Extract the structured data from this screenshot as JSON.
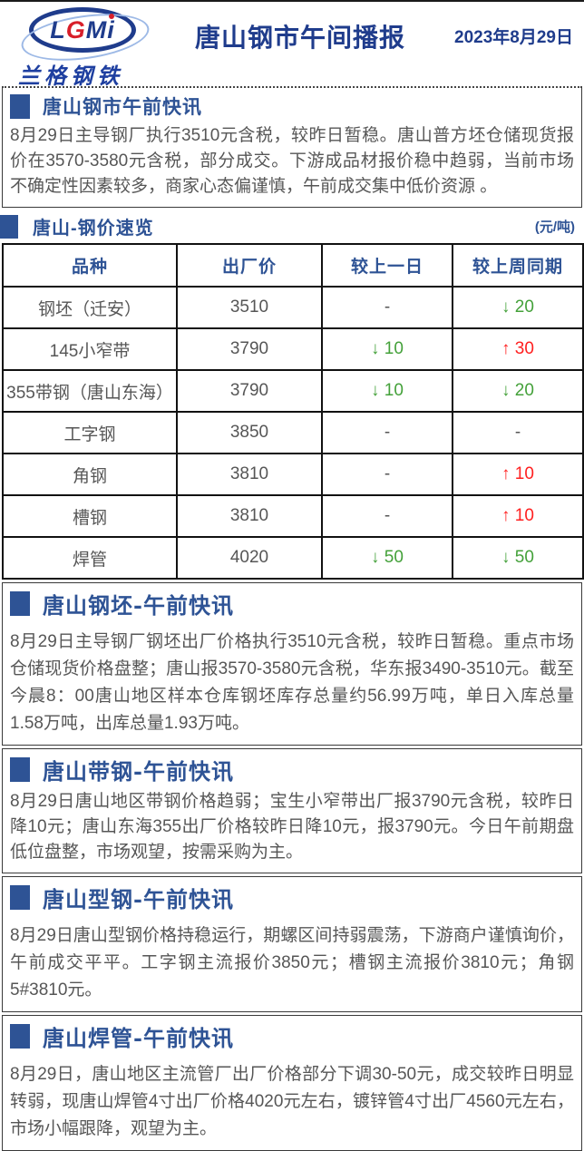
{
  "header": {
    "logo": {
      "letters": [
        "L",
        "G",
        "M",
        "i"
      ],
      "subtext": "兰格钢铁"
    },
    "title": "唐山钢市午间播报",
    "date": "2023年8月29日"
  },
  "morning_brief": {
    "heading": "唐山钢市午前快讯",
    "body": "8月29日主导钢厂执行3510元含税，较昨日暂稳。唐山普方坯仓储现货报价在3570-3580元含税，部分成交。下游成品材报价稳中趋弱，当前市场不确定性因素较多，商家心态偏谨慎，午前成交集中低价资源 。"
  },
  "price_overview": {
    "heading": "唐山-钢价速览",
    "unit": "(元/吨)"
  },
  "price_table": {
    "headers": [
      "品种",
      "出厂价",
      "较上一日",
      "较上周同期"
    ],
    "rows": [
      {
        "product": "钢坯（迁安）",
        "price": "3510",
        "dod": {
          "text": "-",
          "dir": "flat"
        },
        "wow": {
          "text": "↓ 20",
          "dir": "down"
        }
      },
      {
        "product": "145小窄带",
        "price": "3790",
        "dod": {
          "text": "↓ 10",
          "dir": "down"
        },
        "wow": {
          "text": "↑ 30",
          "dir": "up"
        }
      },
      {
        "product": "355带钢（唐山东海）",
        "price": "3790",
        "dod": {
          "text": "↓ 10",
          "dir": "down"
        },
        "wow": {
          "text": "↓ 20",
          "dir": "down"
        }
      },
      {
        "product": "工字钢",
        "price": "3850",
        "dod": {
          "text": "-",
          "dir": "flat"
        },
        "wow": {
          "text": "-",
          "dir": "flat"
        }
      },
      {
        "product": "角钢",
        "price": "3810",
        "dod": {
          "text": "-",
          "dir": "flat"
        },
        "wow": {
          "text": "↑ 10",
          "dir": "up"
        }
      },
      {
        "product": "槽钢",
        "price": "3810",
        "dod": {
          "text": "-",
          "dir": "flat"
        },
        "wow": {
          "text": "↑ 10",
          "dir": "up"
        }
      },
      {
        "product": "焊管",
        "price": "4020",
        "dod": {
          "text": "↓ 50",
          "dir": "down"
        },
        "wow": {
          "text": "↓ 50",
          "dir": "down"
        }
      }
    ]
  },
  "billet_section": {
    "heading": "唐山钢坯-午前快讯",
    "body": "8月29日主导钢厂钢坯出厂价格执行3510元含税，较昨日暂稳。重点市场仓储现货价格盘整；唐山报3570-3580元含税，华东报3490-3510元。截至今晨8：00唐山地区样本仓库钢坯库存总量约56.99万吨，单日入库总量1.58万吨，出库总量1.93万吨。"
  },
  "strip_section": {
    "heading": "唐山带钢-午前快讯",
    "body": "8月29日唐山地区带钢价格趋弱；宝生小窄带出厂报3790元含税，较昨日降10元；唐山东海355出厂价格较昨日降10元，报3790元。今日午前期盘低位盘整，市场观望，按需采购为主。"
  },
  "section_steel_section": {
    "heading": "唐山型钢-午前快讯",
    "body": "8月29日唐山型钢价格持稳运行，期螺区间持弱震荡，下游商户谨慎询价，午前成交平平。工字钢主流报价3850元；槽钢主流报价3810元；角钢5#3810元。"
  },
  "pipe_section": {
    "heading": "唐山焊管-午前快讯",
    "body": "8月29日，唐山地区主流管厂出厂价格部分下调30-50元，成交较昨日明显转弱，现唐山焊管4寸出厂价格4020元左右，镀锌管4寸出厂4560元左右，市场小幅跟降，观望为主。"
  },
  "colors": {
    "heading_blue": "#2e5395",
    "title_blue": "#1f3c8c",
    "down_green": "#44a13a",
    "up_red": "#ff2020",
    "body_gray": "#565656",
    "logo_red": "#d81f2a"
  }
}
